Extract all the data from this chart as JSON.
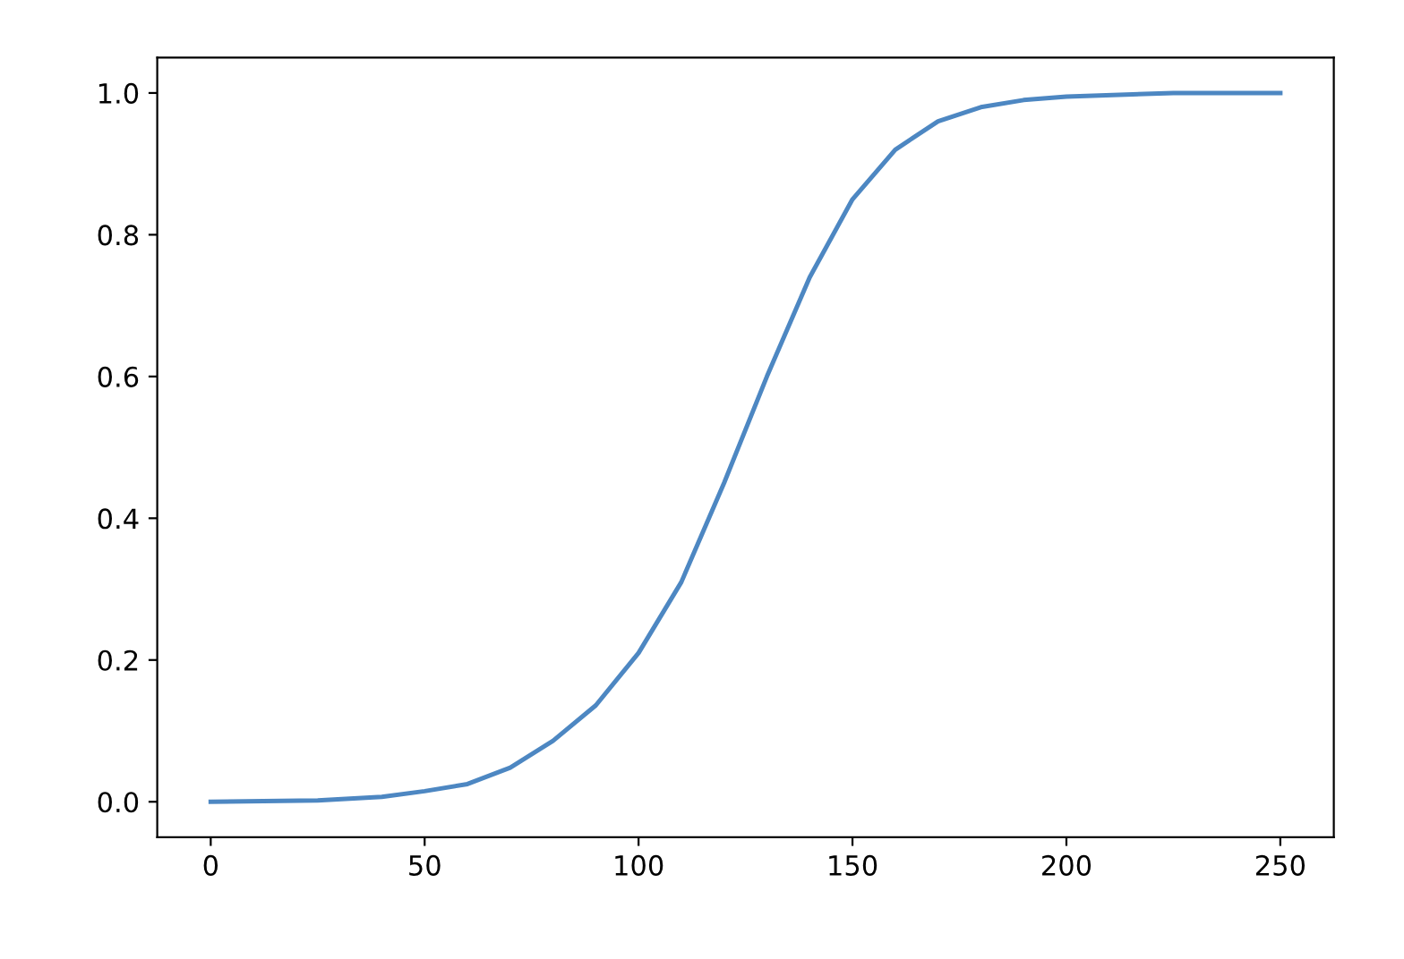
{
  "chart_data": {
    "type": "line",
    "x": [
      0,
      25,
      40,
      50,
      60,
      70,
      80,
      90,
      100,
      110,
      120,
      130,
      140,
      150,
      160,
      170,
      180,
      190,
      200,
      225,
      250
    ],
    "series": [
      {
        "color": "#4d87c2",
        "values": [
          0.0,
          0.002,
          0.007,
          0.015,
          0.025,
          0.048,
          0.086,
          0.136,
          0.21,
          0.31,
          0.45,
          0.6,
          0.74,
          0.85,
          0.92,
          0.96,
          0.98,
          0.99,
          0.995,
          1.0,
          1.0
        ]
      }
    ],
    "xlim": [
      -12.5,
      262.5
    ],
    "ylim": [
      -0.05,
      1.05
    ],
    "xticks": [
      0,
      50,
      100,
      150,
      200,
      250
    ],
    "yticks": [
      {
        "value": 0,
        "label": "0.0"
      },
      {
        "value": 0.2,
        "label": "0.2"
      },
      {
        "value": 0.4,
        "label": "0.4"
      },
      {
        "value": 0.6,
        "label": "0.6"
      },
      {
        "value": 0.8,
        "label": "0.8"
      },
      {
        "value": 1.0,
        "label": "1.0"
      }
    ],
    "grid": false,
    "legend": false
  }
}
